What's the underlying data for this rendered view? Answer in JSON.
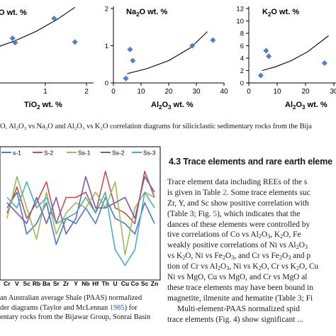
{
  "figures": {
    "top_charts": [
      {
        "label_main": "O wt. %",
        "xlabel_main": "TiO",
        "xlabel_sub": "2",
        "xlabel_tail": " wt. %",
        "yticks": [],
        "xticks": [
          "1",
          "2"
        ],
        "xlim": [
          0.2,
          2.0
        ],
        "ylim": [
          0,
          12
        ],
        "points": [
          [
            0.55,
            7.2
          ],
          [
            0.6,
            6.5
          ],
          [
            0.2,
            3.6
          ],
          [
            1.35,
            10.4
          ],
          [
            1.75,
            6.6
          ]
        ],
        "trend": [
          [
            0.2,
            5.6
          ],
          [
            0.6,
            6.8
          ],
          [
            1.0,
            8.3
          ],
          [
            1.4,
            10.2
          ],
          [
            1.75,
            12.2
          ]
        ]
      },
      {
        "label_main": "Na",
        "label_sub": "2",
        "label_tail": "O wt. %",
        "xlabel_main": "Al",
        "xlabel_sub": "2",
        "xlabel_mid": "O",
        "xlabel_sub2": "3",
        "xlabel_tail": " wt. %",
        "yticks": [
          "0",
          "1",
          "2"
        ],
        "xticks": [
          "0",
          "10",
          "20",
          "30",
          "40"
        ],
        "xlim": [
          0,
          40
        ],
        "ylim": [
          0,
          2
        ],
        "points": [
          [
            4.5,
            0.12
          ],
          [
            6,
            0.9
          ],
          [
            7,
            0.6
          ],
          [
            28.5,
            1.0
          ],
          [
            36,
            1.15
          ]
        ],
        "trend": [
          [
            5,
            0.25
          ],
          [
            12,
            0.38
          ],
          [
            20,
            0.6
          ],
          [
            28,
            0.95
          ],
          [
            34,
            1.38
          ]
        ]
      },
      {
        "label_main": "K",
        "label_sub": "2",
        "label_tail": "O wt. %",
        "xlabel_main": "Al",
        "xlabel_sub": "2",
        "xlabel_mid": "O",
        "xlabel_sub2": "3",
        "xlabel_tail": " wt. %",
        "yticks": [
          "0",
          "2",
          "4",
          "6",
          "8",
          "10",
          "12"
        ],
        "xticks": [
          "0",
          "10",
          "20",
          "30"
        ],
        "xlim": [
          0,
          32
        ],
        "ylim": [
          0,
          12
        ],
        "points": [
          [
            4.5,
            1.2
          ],
          [
            6.5,
            5.2
          ],
          [
            7.5,
            4.3
          ],
          [
            28.5,
            3.2
          ]
        ],
        "trend": [
          [
            5,
            2.0
          ],
          [
            10,
            2.6
          ],
          [
            16,
            3.6
          ],
          [
            22,
            5.0
          ],
          [
            30,
            7.6
          ]
        ]
      }
    ],
    "spider": {
      "legend": [
        "S-1",
        "S-2",
        "Ss-1",
        "Ss-2",
        "Ss-3"
      ],
      "legend_visible": [
        "s-1",
        "S-2",
        "Ss-1",
        "Ss-2",
        "Ss-3"
      ],
      "colors": [
        "#4a7bc0",
        "#c0504d",
        "#9bbb59",
        "#7a5ba8",
        "#4bacc6"
      ],
      "elements": [
        "Cr",
        "V",
        "Sc",
        "Rb",
        "Ba",
        "Sr",
        "Zr",
        "Y",
        "Nb",
        "Hf",
        "Th",
        "U",
        "Cu",
        "Co",
        "Sc",
        "Zn"
      ],
      "series": [
        [
          1.3,
          1.6,
          0.8,
          1.0,
          1.4,
          0.6,
          1.1,
          1.0,
          1.3,
          1.0,
          1.5,
          1.1,
          1.0,
          0.8,
          1.4,
          1.0
        ],
        [
          1.2,
          1.7,
          1.1,
          1.4,
          1.8,
          1.0,
          1.5,
          1.5,
          1.6,
          1.2,
          2.0,
          1.3,
          1.2,
          1.0,
          2.0,
          1.5
        ],
        [
          1.1,
          1.9,
          1.3,
          0.7,
          1.6,
          0.8,
          1.2,
          1.4,
          1.3,
          1.6,
          1.3,
          1.8,
          0.4,
          1.3,
          1.6,
          1.5
        ],
        [
          1.4,
          1.2,
          1.0,
          1.5,
          1.0,
          1.5,
          0.8,
          1.1,
          1.9,
          1.3,
          1.3,
          1.4,
          1.5,
          1.1,
          1.9,
          1.6
        ],
        [
          1.5,
          1.3,
          1.8,
          1.3,
          1.5,
          1.0,
          1.1,
          1.2,
          1.5,
          1.2,
          1.6,
          0.5,
          0.2,
          0.5,
          1.6,
          1.3
        ]
      ]
    }
  },
  "caption_top": "O, Al₂O₃ vs Na₂O and Al₂O₃ vs K₂O correlation diagrams for siliciclastic sedimentary rocks from the Bija",
  "heading": "4.3  Trace elements and rare earth eleme",
  "body": {
    "l1": "Trace element data including REEs of the s",
    "l2a": "is given in Table ",
    "l2b": "2",
    "l2c": ". Some trace elements suc",
    "l3": "Zr, Y, and Sc show positive correlation with",
    "l4a": "(Table 3; Fig. ",
    "l4b": "5",
    "l4c": "), which indicates that the",
    "l5": "dances of these elements were controlled by",
    "l6": "tive correlations of Co vs Al",
    "l6b": "O",
    "l6c": ", K",
    "l6d": "O, Fe",
    "l7": "weakly positive correlations of Ni vs Al",
    "l7b": "O",
    "l8": "vs K",
    "l8b": "O, Ni vs Fe",
    "l8c": "O",
    "l8d": ", and Cr vs Fe",
    "l8e": "O",
    "l8f": " and p",
    "l9": "tion of Cr vs Al",
    "l9b": "O",
    "l9c": ", Ni vs K",
    "l9d": "O, Cr vs K",
    "l9e": "O, Cu",
    "l10": "Ni vs MgO, Cu vs MgO, and Cr vs MgO al",
    "l11": "these trace elements may have been bound in",
    "l12": "magnetite, ilmenite and hematite (Table 3; Fi",
    "l13": "Multi-element-PAAS normalized spid",
    "l14": "trace elements (Fig. 4) show significant ..."
  },
  "sub": {
    "two": "2",
    "three": "3"
  },
  "caption_low": {
    "l1": "an Australian average Shale (PAAS) normalized",
    "l2a": "der diagrams (Taylor and McLennan ",
    "l2b": "1985",
    "l2c": ") for",
    "l3": "entary rocks from the Bijawar Group, Sonrai Basin"
  }
}
